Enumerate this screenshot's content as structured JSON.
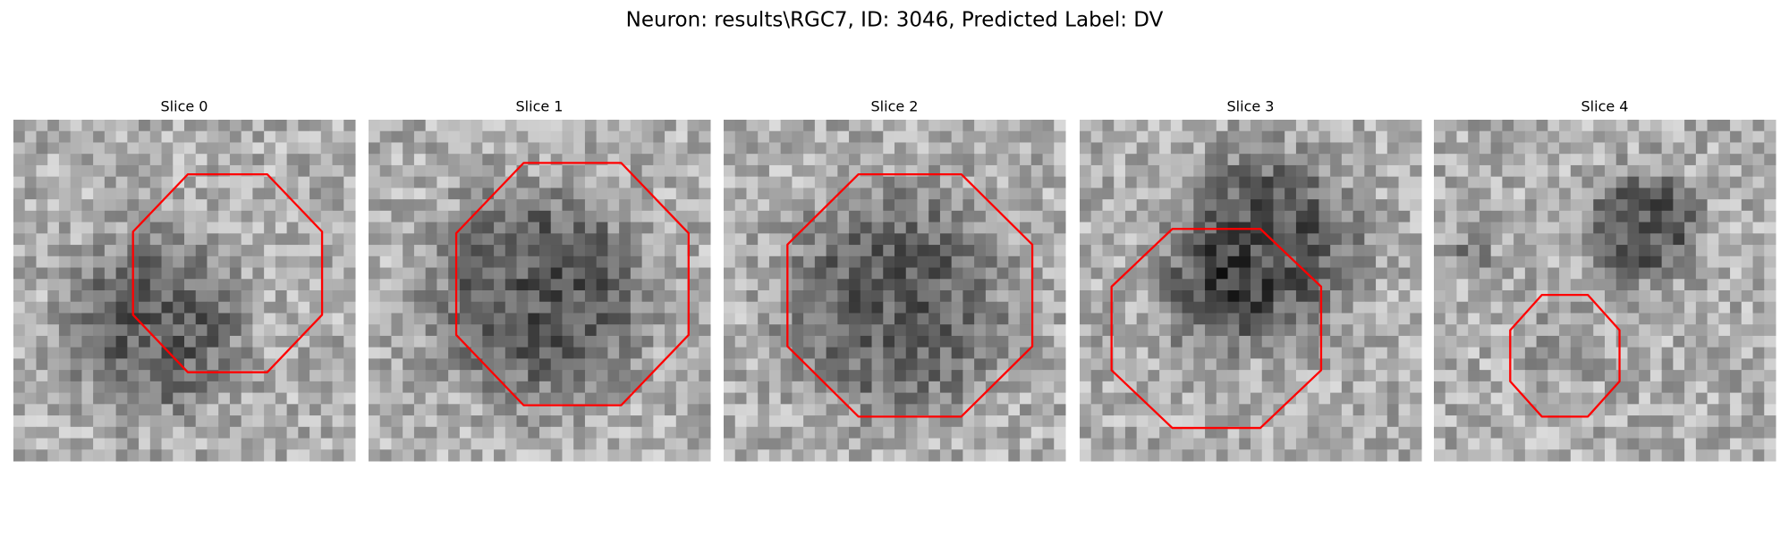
{
  "title": "Neuron: results\\RGC7, ID: 3046, Predicted Label: DV",
  "panels": [
    {
      "title": "Slice 0"
    },
    {
      "title": "Slice 1"
    },
    {
      "title": "Slice 2"
    },
    {
      "title": "Slice 3"
    },
    {
      "title": "Slice 4"
    }
  ]
}
